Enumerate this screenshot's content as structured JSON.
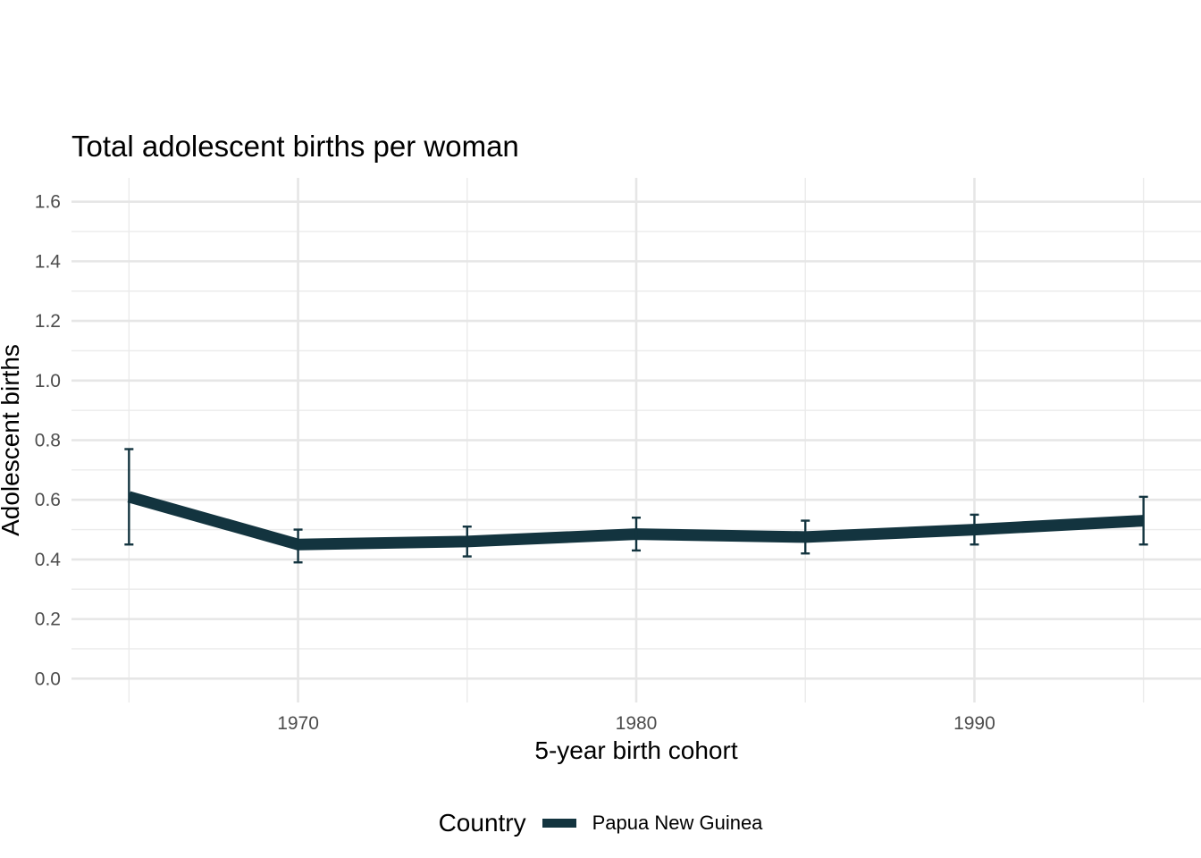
{
  "chart_data": {
    "type": "line",
    "title": "Total adolescent births per woman",
    "xlabel": "5-year birth cohort",
    "ylabel": "Adolescent births",
    "xlim": [
      1963.3,
      1996.7
    ],
    "ylim": [
      -0.08,
      1.68
    ],
    "x_ticks": [
      1970,
      1980,
      1990
    ],
    "y_ticks": [
      0.0,
      0.2,
      0.4,
      0.6,
      0.8,
      1.0,
      1.2,
      1.4,
      1.6
    ],
    "y_tick_labels": [
      "0.0",
      "0.2",
      "0.4",
      "0.6",
      "0.8",
      "1.0",
      "1.2",
      "1.4",
      "1.6"
    ],
    "legend_title": "Country",
    "legend_position": "bottom",
    "series": [
      {
        "name": "Papua New Guinea",
        "color": "#13343f",
        "x": [
          1965,
          1970,
          1975,
          1980,
          1985,
          1990,
          1995
        ],
        "values": [
          0.61,
          0.45,
          0.46,
          0.485,
          0.475,
          0.5,
          0.53
        ],
        "lower": [
          0.45,
          0.39,
          0.41,
          0.43,
          0.42,
          0.45,
          0.45
        ],
        "upper": [
          0.77,
          0.5,
          0.51,
          0.54,
          0.53,
          0.55,
          0.61
        ]
      }
    ]
  }
}
